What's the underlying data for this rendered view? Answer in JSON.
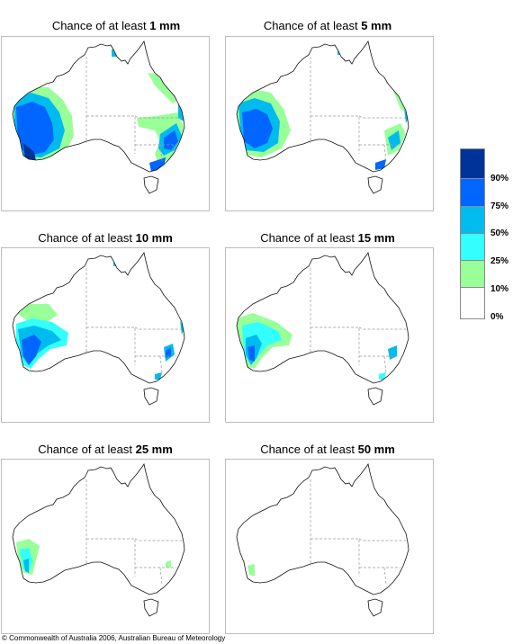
{
  "title_prefix": "Chance of at least ",
  "panels": [
    {
      "threshold": "1 mm"
    },
    {
      "threshold": "5 mm"
    },
    {
      "threshold": "10 mm"
    },
    {
      "threshold": "15 mm"
    },
    {
      "threshold": "25 mm"
    },
    {
      "threshold": "50 mm"
    }
  ],
  "legend": {
    "bands": [
      {
        "range": "90-100%",
        "color": "#003399"
      },
      {
        "range": "75-90%",
        "color": "#0066ff"
      },
      {
        "range": "50-75%",
        "color": "#00bbee"
      },
      {
        "range": "25-50%",
        "color": "#33ffff"
      },
      {
        "range": "10-25%",
        "color": "#99ff99"
      },
      {
        "range": "0-10%",
        "color": "#ffffff"
      }
    ],
    "labels": [
      "90%",
      "75%",
      "50%",
      "25%",
      "10%",
      "0%"
    ]
  },
  "copyright": "© Commonwealth of Australia 2006, Australian Bureau of Meteorology"
}
